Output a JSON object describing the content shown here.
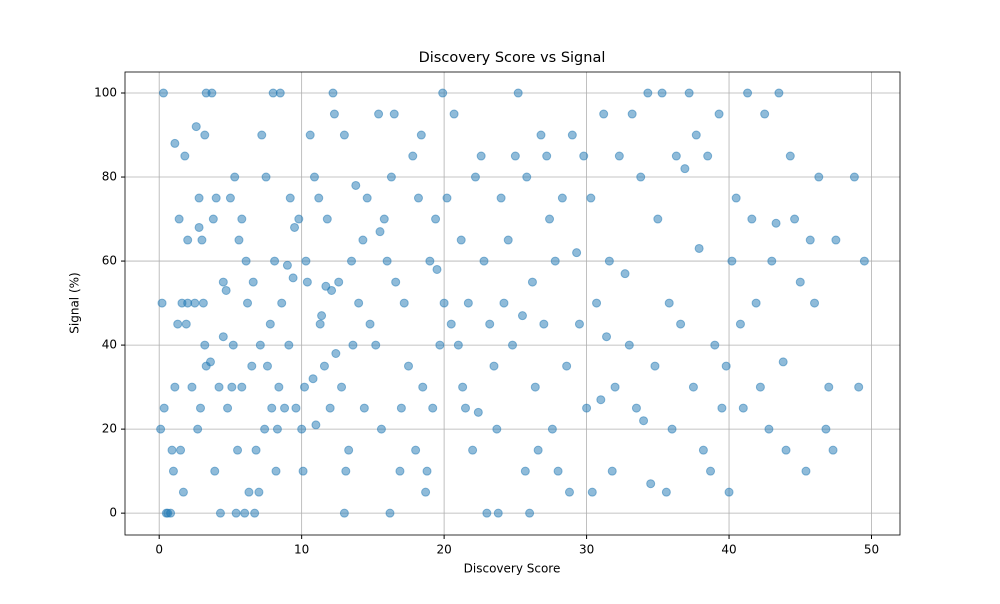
{
  "chart_data": {
    "type": "scatter",
    "title": "Discovery Score vs Signal",
    "x_label": "Discovery Score",
    "y_label": "Signal (%)",
    "color": "#1f77b4",
    "grid": true,
    "xlim": [
      -2.4,
      52
    ],
    "ylim": [
      -5.2,
      105
    ],
    "xticks": [
      0,
      10,
      20,
      30,
      40,
      50
    ],
    "yticks": [
      0,
      20,
      40,
      60,
      80,
      100
    ],
    "x": [
      0.1,
      0.2,
      0.3,
      0.35,
      0.5,
      0.6,
      0.8,
      0.9,
      1.0,
      1.1,
      1.1,
      1.3,
      1.4,
      1.5,
      1.6,
      1.7,
      1.8,
      1.9,
      2.0,
      2.0,
      2.3,
      2.5,
      2.6,
      2.7,
      2.8,
      2.8,
      2.9,
      3.0,
      3.1,
      3.2,
      3.2,
      3.3,
      3.3,
      3.6,
      3.7,
      3.8,
      3.9,
      4.0,
      4.2,
      4.3,
      4.5,
      4.5,
      4.7,
      4.8,
      5.0,
      5.1,
      5.2,
      5.3,
      5.4,
      5.5,
      5.6,
      5.8,
      5.8,
      6.0,
      6.1,
      6.2,
      6.3,
      6.5,
      6.6,
      6.7,
      6.8,
      7.0,
      7.1,
      7.2,
      7.4,
      7.5,
      7.6,
      7.8,
      7.9,
      8.0,
      8.1,
      8.2,
      8.3,
      8.4,
      8.5,
      8.6,
      8.8,
      9.0,
      9.1,
      9.2,
      9.4,
      9.5,
      9.6,
      9.8,
      10.0,
      10.1,
      10.2,
      10.3,
      10.4,
      10.6,
      10.8,
      10.9,
      11.0,
      11.2,
      11.3,
      11.4,
      11.6,
      11.7,
      11.8,
      12.0,
      12.1,
      12.2,
      12.3,
      12.4,
      12.6,
      12.8,
      13.0,
      13.0,
      13.1,
      13.3,
      13.5,
      13.6,
      13.8,
      14.0,
      14.3,
      14.4,
      14.6,
      14.8,
      15.2,
      15.4,
      15.5,
      15.6,
      15.8,
      16.0,
      16.2,
      16.3,
      16.5,
      16.6,
      16.9,
      17.0,
      17.2,
      17.5,
      17.8,
      18.0,
      18.2,
      18.4,
      18.5,
      18.7,
      18.8,
      19.0,
      19.2,
      19.4,
      19.5,
      19.7,
      19.9,
      20.0,
      20.2,
      20.5,
      20.7,
      21.0,
      21.2,
      21.3,
      21.5,
      21.7,
      22.0,
      22.2,
      22.4,
      22.6,
      22.8,
      23.0,
      23.2,
      23.5,
      23.7,
      23.8,
      24.0,
      24.2,
      24.5,
      24.8,
      25.0,
      25.2,
      25.5,
      25.7,
      25.8,
      26.0,
      26.2,
      26.4,
      26.6,
      26.8,
      27.0,
      27.2,
      27.4,
      27.6,
      27.8,
      28.0,
      28.3,
      28.6,
      28.8,
      29.0,
      29.3,
      29.5,
      29.8,
      30.0,
      30.3,
      30.4,
      30.7,
      31.0,
      31.2,
      31.4,
      31.6,
      31.8,
      32.0,
      32.3,
      32.7,
      33.0,
      33.2,
      33.5,
      33.8,
      34.0,
      34.3,
      34.5,
      34.8,
      35.0,
      35.3,
      35.6,
      35.8,
      36.0,
      36.3,
      36.6,
      36.9,
      37.2,
      37.5,
      37.7,
      37.9,
      38.2,
      38.5,
      38.7,
      39.0,
      39.3,
      39.5,
      39.8,
      40.0,
      40.2,
      40.5,
      40.8,
      41.0,
      41.3,
      41.6,
      41.9,
      42.2,
      42.5,
      42.8,
      43.0,
      43.3,
      43.5,
      43.8,
      44.0,
      44.3,
      44.6,
      45.0,
      45.4,
      45.7,
      46.0,
      46.3,
      46.8,
      47.0,
      47.3,
      47.5,
      48.8,
      49.1,
      49.5
    ],
    "values": [
      20,
      50,
      100,
      25,
      0,
      0,
      0,
      15,
      10,
      30,
      88,
      45,
      70,
      15,
      50,
      5,
      85,
      45,
      65,
      50,
      30,
      50,
      92,
      20,
      75,
      68,
      25,
      65,
      50,
      90,
      40,
      100,
      35,
      36,
      100,
      70,
      10,
      75,
      30,
      0,
      55,
      42,
      53,
      25,
      75,
      30,
      40,
      80,
      0,
      15,
      65,
      30,
      70,
      0,
      60,
      50,
      5,
      35,
      55,
      0,
      15,
      5,
      40,
      90,
      20,
      80,
      35,
      45,
      25,
      100,
      60,
      10,
      20,
      30,
      100,
      50,
      25,
      59,
      40,
      75,
      56,
      68,
      25,
      70,
      20,
      10,
      30,
      60,
      55,
      90,
      32,
      80,
      21,
      75,
      45,
      47,
      35,
      54,
      70,
      25,
      53,
      100,
      95,
      38,
      55,
      30,
      90,
      0,
      10,
      15,
      60,
      40,
      78,
      50,
      65,
      25,
      75,
      45,
      40,
      95,
      67,
      20,
      70,
      60,
      0,
      80,
      95,
      55,
      10,
      25,
      50,
      35,
      85,
      15,
      75,
      90,
      30,
      5,
      10,
      60,
      25,
      70,
      58,
      40,
      100,
      50,
      75,
      45,
      95,
      40,
      65,
      30,
      25,
      50,
      15,
      80,
      24,
      85,
      60,
      0,
      45,
      35,
      20,
      0,
      75,
      50,
      65,
      40,
      85,
      100,
      47,
      10,
      80,
      0,
      55,
      30,
      15,
      90,
      45,
      85,
      70,
      20,
      60,
      10,
      75,
      35,
      5,
      90,
      62,
      45,
      85,
      25,
      75,
      5,
      50,
      27,
      95,
      42,
      60,
      10,
      30,
      85,
      57,
      40,
      95,
      25,
      80,
      22,
      100,
      7,
      35,
      70,
      100,
      5,
      50,
      20,
      85,
      45,
      82,
      100,
      30,
      90,
      63,
      15,
      85,
      10,
      40,
      95,
      25,
      35,
      5,
      60,
      75,
      45,
      25,
      100,
      70,
      50,
      30,
      95,
      20,
      60,
      69,
      100,
      36,
      15,
      85,
      70,
      55,
      10,
      65,
      50,
      80,
      20,
      30,
      15,
      65,
      80,
      30,
      60
    ]
  }
}
